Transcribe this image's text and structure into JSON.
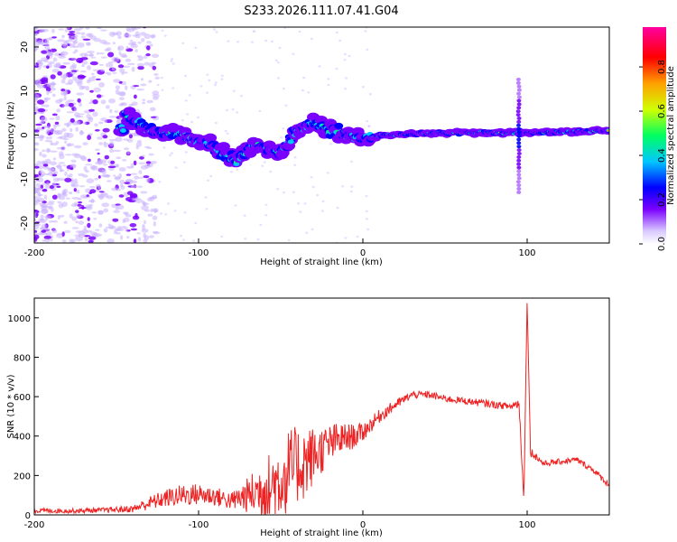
{
  "title": "S233.2026.111.07.41.G04",
  "chart_data": [
    {
      "type": "heatmap",
      "name": "spectrogram",
      "xlabel": "Height of straight line (km)",
      "ylabel": "Frequency (Hz)",
      "xlim": [
        -200,
        150
      ],
      "ylim": [
        -24.5,
        24.5
      ],
      "xticks": [
        -200,
        -100,
        0,
        100
      ],
      "yticks": [
        -20,
        -10,
        0,
        10,
        20
      ],
      "colorbar": {
        "label": "Normalized spectral amplitude",
        "ticks": [
          0.0,
          0.2,
          0.4,
          0.6,
          0.8
        ],
        "range": [
          0.0,
          0.98
        ],
        "colors": [
          "#ffffff",
          "#d8c8ff",
          "#7a00ff",
          "#0000ff",
          "#00c8ff",
          "#00ff60",
          "#d0ff00",
          "#ffa000",
          "#ff0000",
          "#ff00a0"
        ]
      },
      "ridge": {
        "description_points": [
          {
            "x": -145,
            "y": 5
          },
          {
            "x": -130,
            "y": 1
          },
          {
            "x": -110,
            "y": 0
          },
          {
            "x": -95,
            "y": -2
          },
          {
            "x": -85,
            "y": -4
          },
          {
            "x": -78,
            "y": -6
          },
          {
            "x": -65,
            "y": -2
          },
          {
            "x": -50,
            "y": -4
          },
          {
            "x": -40,
            "y": 1
          },
          {
            "x": -30,
            "y": 3
          },
          {
            "x": -20,
            "y": 1
          },
          {
            "x": -10,
            "y": 0
          },
          {
            "x": 0,
            "y": -1
          },
          {
            "x": 10,
            "y": 0
          },
          {
            "x": 50,
            "y": 0.5
          },
          {
            "x": 90,
            "y": 0.5
          },
          {
            "x": 100,
            "y": 0.5
          },
          {
            "x": 150,
            "y": 1
          }
        ],
        "spike_x": 95
      }
    },
    {
      "type": "line",
      "name": "snr",
      "xlabel": "Height of straight line (km)",
      "ylabel": "SNR (10 * v/v)",
      "xlim": [
        -200,
        150
      ],
      "ylim": [
        0,
        1100
      ],
      "xticks": [
        -200,
        -100,
        0,
        100
      ],
      "yticks": [
        0,
        200,
        400,
        600,
        800,
        1000
      ],
      "color": "#ee2222",
      "series": [
        {
          "name": "SNR",
          "x": [
            -200,
            -180,
            -160,
            -140,
            -130,
            -120,
            -110,
            -100,
            -90,
            -80,
            -70,
            -60,
            -50,
            -45,
            -40,
            -35,
            -30,
            -25,
            -20,
            -15,
            -10,
            -5,
            0,
            5,
            10,
            20,
            30,
            40,
            50,
            60,
            70,
            80,
            90,
            95,
            98,
            100,
            102,
            105,
            110,
            120,
            130,
            140,
            150
          ],
          "y": [
            22,
            20,
            24,
            30,
            60,
            85,
            100,
            105,
            95,
            70,
            100,
            130,
            180,
            220,
            250,
            270,
            300,
            330,
            360,
            380,
            390,
            400,
            420,
            460,
            500,
            560,
            610,
            610,
            590,
            580,
            570,
            560,
            550,
            570,
            80,
            1100,
            320,
            300,
            260,
            270,
            280,
            230,
            150
          ],
          "noise": [
            12,
            12,
            12,
            18,
            35,
            45,
            55,
            55,
            50,
            45,
            90,
            160,
            200,
            220,
            200,
            190,
            150,
            120,
            100,
            90,
            75,
            60,
            50,
            40,
            35,
            25,
            20,
            18,
            18,
            18,
            18,
            18,
            18,
            30,
            20,
            0,
            25,
            20,
            15,
            15,
            15,
            15,
            15
          ]
        }
      ]
    }
  ]
}
